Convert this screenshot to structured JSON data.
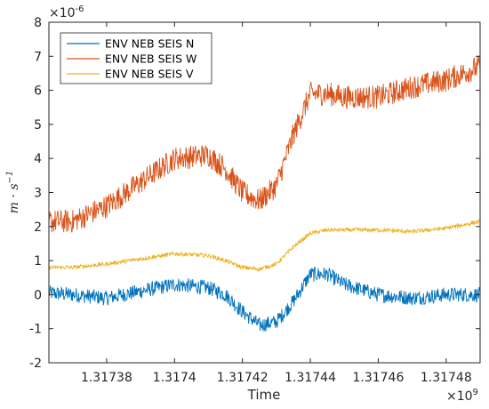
{
  "chart_data": {
    "type": "line",
    "xlabel": "Time",
    "ylabel": "m · s",
    "ylabel_exponent": "−1",
    "x_multiplier": "×10",
    "x_multiplier_exponent": "9",
    "y_multiplier": "×10",
    "y_multiplier_exponent": "-6",
    "xlim": [
      1.317363,
      1.31749
    ],
    "ylim": [
      -2,
      8
    ],
    "xticks": [
      1.31738,
      1.3174,
      1.31742,
      1.31744,
      1.31746,
      1.31748
    ],
    "xtick_labels": [
      "1.31738",
      "1.3174",
      "1.31742",
      "1.31744",
      "1.31746",
      "1.31748"
    ],
    "yticks": [
      -2,
      -1,
      0,
      1,
      2,
      3,
      4,
      5,
      6,
      7,
      8
    ],
    "ytick_labels": [
      "-2",
      "-1",
      "0",
      "1",
      "2",
      "3",
      "4",
      "5",
      "6",
      "7",
      "8"
    ],
    "grid": false,
    "legend_position": "top-left",
    "series": [
      {
        "name": "ENV NEB SEIS N",
        "color": "#0072BD",
        "noise": 0.22,
        "x": [
          1.317363,
          1.31737,
          1.31738,
          1.31739,
          1.3174,
          1.31741,
          1.317415,
          1.31742,
          1.317425,
          1.31743,
          1.317435,
          1.31744,
          1.317445,
          1.31745,
          1.31746,
          1.31747,
          1.31748,
          1.31749
        ],
        "y": [
          0.05,
          0.0,
          -0.1,
          0.1,
          0.3,
          0.2,
          0.0,
          -0.5,
          -0.9,
          -0.8,
          -0.2,
          0.6,
          0.6,
          0.3,
          0.0,
          -0.1,
          0.0,
          0.0
        ]
      },
      {
        "name": "ENV NEB SEIS W",
        "color": "#D95319",
        "noise": 0.35,
        "x": [
          1.317363,
          1.31737,
          1.31738,
          1.31739,
          1.3174,
          1.31741,
          1.317415,
          1.31742,
          1.317425,
          1.31743,
          1.317435,
          1.31744,
          1.317445,
          1.31745,
          1.31746,
          1.31747,
          1.31748,
          1.31749
        ],
        "y": [
          2.15,
          2.15,
          2.6,
          3.3,
          4.0,
          4.1,
          3.7,
          3.0,
          2.75,
          3.2,
          4.7,
          5.9,
          5.9,
          5.8,
          5.8,
          6.1,
          6.3,
          6.7
        ]
      },
      {
        "name": "ENV NEB SEIS V",
        "color": "#EDB120",
        "noise": 0.06,
        "x": [
          1.317363,
          1.31737,
          1.31738,
          1.31739,
          1.3174,
          1.31741,
          1.317415,
          1.31742,
          1.317425,
          1.31743,
          1.317435,
          1.31744,
          1.317445,
          1.31745,
          1.31746,
          1.31747,
          1.31748,
          1.31749
        ],
        "y": [
          0.8,
          0.8,
          0.9,
          1.05,
          1.2,
          1.15,
          1.0,
          0.8,
          0.75,
          0.9,
          1.4,
          1.8,
          1.9,
          1.9,
          1.9,
          1.85,
          1.95,
          2.15
        ]
      }
    ]
  }
}
